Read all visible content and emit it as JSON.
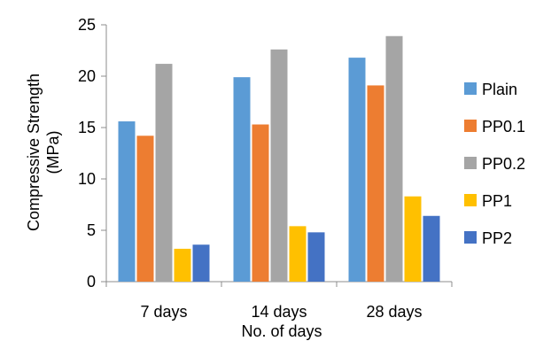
{
  "chart_data": {
    "type": "bar",
    "categories": [
      "7 days",
      "14 days",
      "28 days"
    ],
    "series": [
      {
        "name": "Plain",
        "color": "#5B9BD5",
        "values": [
          15.6,
          19.9,
          21.8
        ]
      },
      {
        "name": "PP0.1",
        "color": "#ED7D31",
        "values": [
          14.2,
          15.3,
          19.1
        ]
      },
      {
        "name": "PP0.2",
        "color": "#A5A5A5",
        "values": [
          21.2,
          22.6,
          23.9
        ]
      },
      {
        "name": "PP1",
        "color": "#FFC000",
        "values": [
          3.2,
          5.4,
          8.3
        ]
      },
      {
        "name": "PP2",
        "color": "#4472C4",
        "values": [
          3.6,
          4.8,
          6.4
        ]
      }
    ],
    "xlabel": "No. of days",
    "ylabel_line1": "Compressive Strength",
    "ylabel_line2": "(MPa)",
    "ylim": [
      0,
      25
    ],
    "yticks": [
      0,
      5,
      10,
      15,
      20,
      25
    ],
    "legend_position": "right",
    "grid": false
  }
}
